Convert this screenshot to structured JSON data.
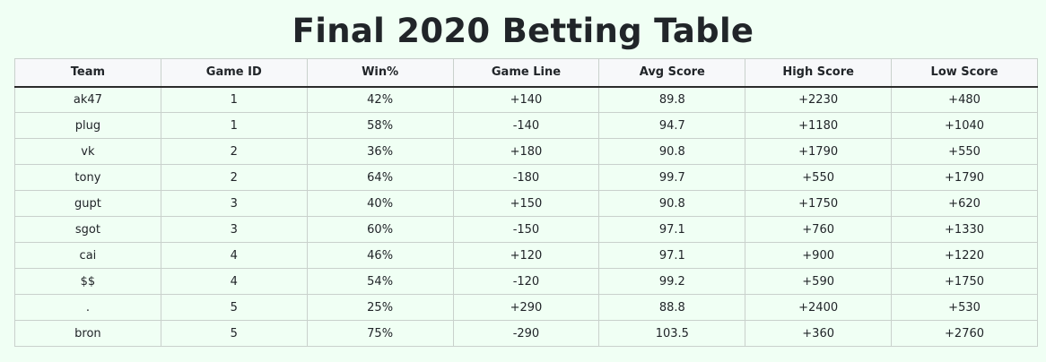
{
  "page": {
    "title": "Final 2020 Betting Table"
  },
  "table": {
    "columns": [
      "Team",
      "Game ID",
      "Win%",
      "Game Line",
      "Avg Score",
      "High Score",
      "Low Score"
    ],
    "rows": [
      [
        "ak47",
        "1",
        "42%",
        "+140",
        "89.8",
        "+2230",
        "+480"
      ],
      [
        "plug",
        "1",
        "58%",
        "-140",
        "94.7",
        "+1180",
        "+1040"
      ],
      [
        "vk",
        "2",
        "36%",
        "+180",
        "90.8",
        "+1790",
        "+550"
      ],
      [
        "tony",
        "2",
        "64%",
        "-180",
        "99.7",
        "+550",
        "+1790"
      ],
      [
        "gupt",
        "3",
        "40%",
        "+150",
        "90.8",
        "+1750",
        "+620"
      ],
      [
        "sgot",
        "3",
        "60%",
        "-150",
        "97.1",
        "+760",
        "+1330"
      ],
      [
        "cai",
        "4",
        "46%",
        "+120",
        "97.1",
        "+900",
        "+1220"
      ],
      [
        "$$",
        "4",
        "54%",
        "-120",
        "99.2",
        "+590",
        "+1750"
      ],
      [
        ".",
        "5",
        "25%",
        "+290",
        "88.8",
        "+2400",
        "+530"
      ],
      [
        "bron",
        "5",
        "75%",
        "-290",
        "103.5",
        "+360",
        "+2760"
      ]
    ]
  }
}
